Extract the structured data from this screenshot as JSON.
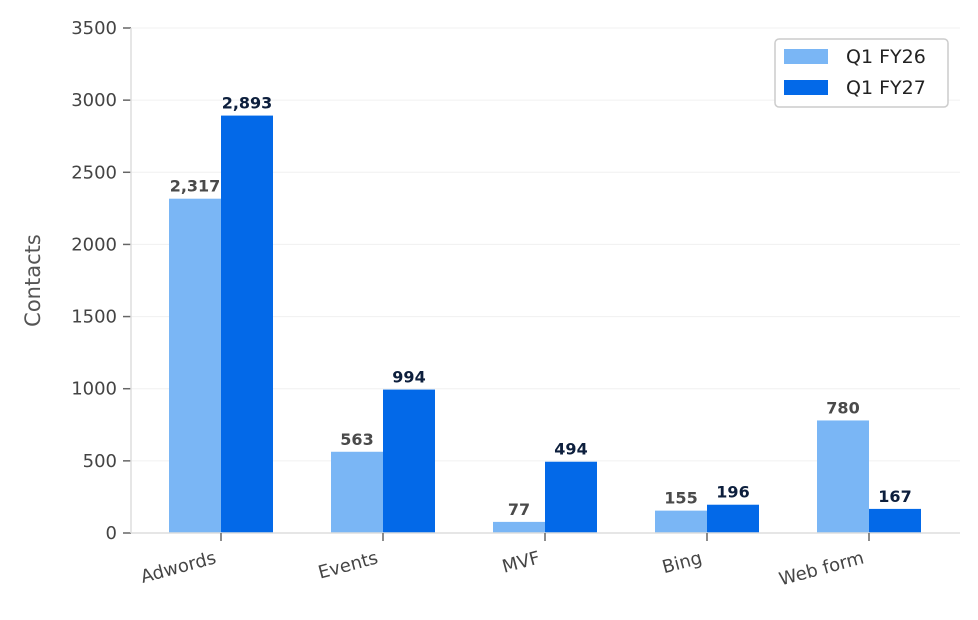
{
  "chart_data": {
    "type": "bar",
    "categories": [
      "Adwords",
      "Events",
      "MVF",
      "Bing",
      "Web form"
    ],
    "series": [
      {
        "name": "Q1 FY26",
        "values": [
          2317,
          563,
          77,
          155,
          780
        ],
        "labels": [
          "2,317",
          "563",
          "77",
          "155",
          "780"
        ],
        "color": "#7ab6f5"
      },
      {
        "name": "Q1 FY27",
        "values": [
          2893,
          994,
          494,
          196,
          167
        ],
        "labels": [
          "2,893",
          "994",
          "494",
          "196",
          "167"
        ],
        "color": "#0369e8"
      }
    ],
    "ylabel": "Contacts",
    "ylim": [
      0,
      3500
    ],
    "yticks": [
      0,
      500,
      1000,
      1500,
      2000,
      2500,
      3000,
      3500
    ],
    "grid": true,
    "legend": "top-right"
  }
}
